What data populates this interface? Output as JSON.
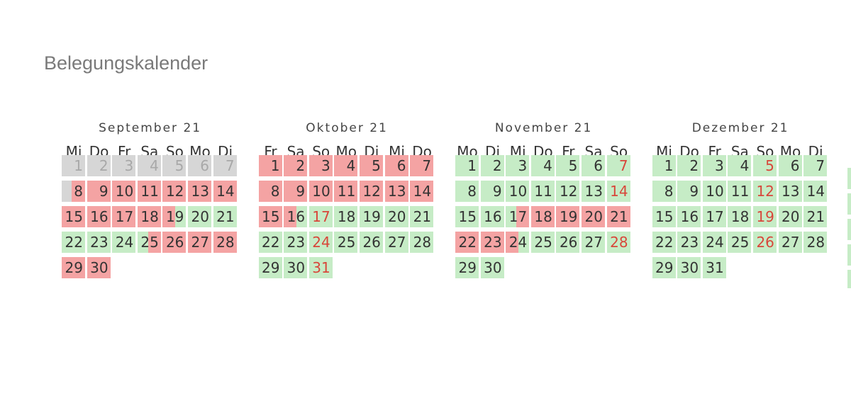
{
  "title": "Belegungskalender",
  "months": [
    {
      "name": "September 21",
      "weekdays": [
        "Mi",
        "Do",
        "Fr",
        "Sa",
        "So",
        "Mo",
        "Di"
      ],
      "days": [
        {
          "day": 1,
          "status": "past"
        },
        {
          "day": 2,
          "status": "past"
        },
        {
          "day": 3,
          "status": "past"
        },
        {
          "day": 4,
          "status": "past"
        },
        {
          "day": 5,
          "status": "past"
        },
        {
          "day": 6,
          "status": "past"
        },
        {
          "day": 7,
          "status": "past"
        },
        {
          "day": 8,
          "status": "past-booked"
        },
        {
          "day": 9,
          "status": "booked"
        },
        {
          "day": 10,
          "status": "booked"
        },
        {
          "day": 11,
          "status": "booked"
        },
        {
          "day": 12,
          "status": "booked"
        },
        {
          "day": 13,
          "status": "booked"
        },
        {
          "day": 14,
          "status": "booked"
        },
        {
          "day": 15,
          "status": "booked"
        },
        {
          "day": 16,
          "status": "booked"
        },
        {
          "day": 17,
          "status": "booked"
        },
        {
          "day": 18,
          "status": "booked"
        },
        {
          "day": 19,
          "status": "booked-free"
        },
        {
          "day": 20,
          "status": "free"
        },
        {
          "day": 21,
          "status": "free"
        },
        {
          "day": 22,
          "status": "free"
        },
        {
          "day": 23,
          "status": "free"
        },
        {
          "day": 24,
          "status": "free"
        },
        {
          "day": 25,
          "status": "free-booked"
        },
        {
          "day": 26,
          "status": "booked"
        },
        {
          "day": 27,
          "status": "booked"
        },
        {
          "day": 28,
          "status": "booked"
        },
        {
          "day": 29,
          "status": "booked"
        },
        {
          "day": 30,
          "status": "booked"
        }
      ]
    },
    {
      "name": "Oktober 21",
      "weekdays": [
        "Fr",
        "Sa",
        "So",
        "Mo",
        "Di",
        "Mi",
        "Do"
      ],
      "days": [
        {
          "day": 1,
          "status": "booked"
        },
        {
          "day": 2,
          "status": "booked"
        },
        {
          "day": 3,
          "status": "booked"
        },
        {
          "day": 4,
          "status": "booked"
        },
        {
          "day": 5,
          "status": "booked"
        },
        {
          "day": 6,
          "status": "booked"
        },
        {
          "day": 7,
          "status": "booked"
        },
        {
          "day": 8,
          "status": "booked"
        },
        {
          "day": 9,
          "status": "booked"
        },
        {
          "day": 10,
          "status": "booked"
        },
        {
          "day": 11,
          "status": "booked"
        },
        {
          "day": 12,
          "status": "booked"
        },
        {
          "day": 13,
          "status": "booked"
        },
        {
          "day": 14,
          "status": "booked"
        },
        {
          "day": 15,
          "status": "booked"
        },
        {
          "day": 16,
          "status": "booked-free"
        },
        {
          "day": 17,
          "status": "sunday"
        },
        {
          "day": 18,
          "status": "free"
        },
        {
          "day": 19,
          "status": "free"
        },
        {
          "day": 20,
          "status": "free"
        },
        {
          "day": 21,
          "status": "free"
        },
        {
          "day": 22,
          "status": "free"
        },
        {
          "day": 23,
          "status": "free"
        },
        {
          "day": 24,
          "status": "sunday"
        },
        {
          "day": 25,
          "status": "free"
        },
        {
          "day": 26,
          "status": "free"
        },
        {
          "day": 27,
          "status": "free"
        },
        {
          "day": 28,
          "status": "free"
        },
        {
          "day": 29,
          "status": "free"
        },
        {
          "day": 30,
          "status": "free"
        },
        {
          "day": 31,
          "status": "sunday"
        }
      ]
    },
    {
      "name": "November 21",
      "weekdays": [
        "Mo",
        "Di",
        "Mi",
        "Do",
        "Fr",
        "Sa",
        "So"
      ],
      "days": [
        {
          "day": 1,
          "status": "free"
        },
        {
          "day": 2,
          "status": "free"
        },
        {
          "day": 3,
          "status": "free"
        },
        {
          "day": 4,
          "status": "free"
        },
        {
          "day": 5,
          "status": "free"
        },
        {
          "day": 6,
          "status": "free"
        },
        {
          "day": 7,
          "status": "sunday"
        },
        {
          "day": 8,
          "status": "free"
        },
        {
          "day": 9,
          "status": "free"
        },
        {
          "day": 10,
          "status": "free"
        },
        {
          "day": 11,
          "status": "free"
        },
        {
          "day": 12,
          "status": "free"
        },
        {
          "day": 13,
          "status": "free"
        },
        {
          "day": 14,
          "status": "sunday"
        },
        {
          "day": 15,
          "status": "free"
        },
        {
          "day": 16,
          "status": "free"
        },
        {
          "day": 17,
          "status": "free-booked"
        },
        {
          "day": 18,
          "status": "booked"
        },
        {
          "day": 19,
          "status": "booked"
        },
        {
          "day": 20,
          "status": "booked"
        },
        {
          "day": 21,
          "status": "booked"
        },
        {
          "day": 22,
          "status": "booked"
        },
        {
          "day": 23,
          "status": "booked"
        },
        {
          "day": 24,
          "status": "booked-free"
        },
        {
          "day": 25,
          "status": "free"
        },
        {
          "day": 26,
          "status": "free"
        },
        {
          "day": 27,
          "status": "free"
        },
        {
          "day": 28,
          "status": "sunday"
        },
        {
          "day": 29,
          "status": "free"
        },
        {
          "day": 30,
          "status": "free"
        }
      ]
    },
    {
      "name": "Dezember 21",
      "weekdays": [
        "Mi",
        "Do",
        "Fr",
        "Sa",
        "So",
        "Mo",
        "Di"
      ],
      "days": [
        {
          "day": 1,
          "status": "free"
        },
        {
          "day": 2,
          "status": "free"
        },
        {
          "day": 3,
          "status": "free"
        },
        {
          "day": 4,
          "status": "free"
        },
        {
          "day": 5,
          "status": "sunday"
        },
        {
          "day": 6,
          "status": "free"
        },
        {
          "day": 7,
          "status": "free"
        },
        {
          "day": 8,
          "status": "free"
        },
        {
          "day": 9,
          "status": "free"
        },
        {
          "day": 10,
          "status": "free"
        },
        {
          "day": 11,
          "status": "free"
        },
        {
          "day": 12,
          "status": "sunday"
        },
        {
          "day": 13,
          "status": "free"
        },
        {
          "day": 14,
          "status": "free"
        },
        {
          "day": 15,
          "status": "free"
        },
        {
          "day": 16,
          "status": "free"
        },
        {
          "day": 17,
          "status": "free"
        },
        {
          "day": 18,
          "status": "free"
        },
        {
          "day": 19,
          "status": "sunday"
        },
        {
          "day": 20,
          "status": "free"
        },
        {
          "day": 21,
          "status": "free"
        },
        {
          "day": 22,
          "status": "free"
        },
        {
          "day": 23,
          "status": "free"
        },
        {
          "day": 24,
          "status": "free"
        },
        {
          "day": 25,
          "status": "free"
        },
        {
          "day": 26,
          "status": "sunday"
        },
        {
          "day": 27,
          "status": "free"
        },
        {
          "day": 28,
          "status": "free"
        },
        {
          "day": 29,
          "status": "free"
        },
        {
          "day": 30,
          "status": "free"
        },
        {
          "day": 31,
          "status": "free"
        }
      ]
    }
  ]
}
